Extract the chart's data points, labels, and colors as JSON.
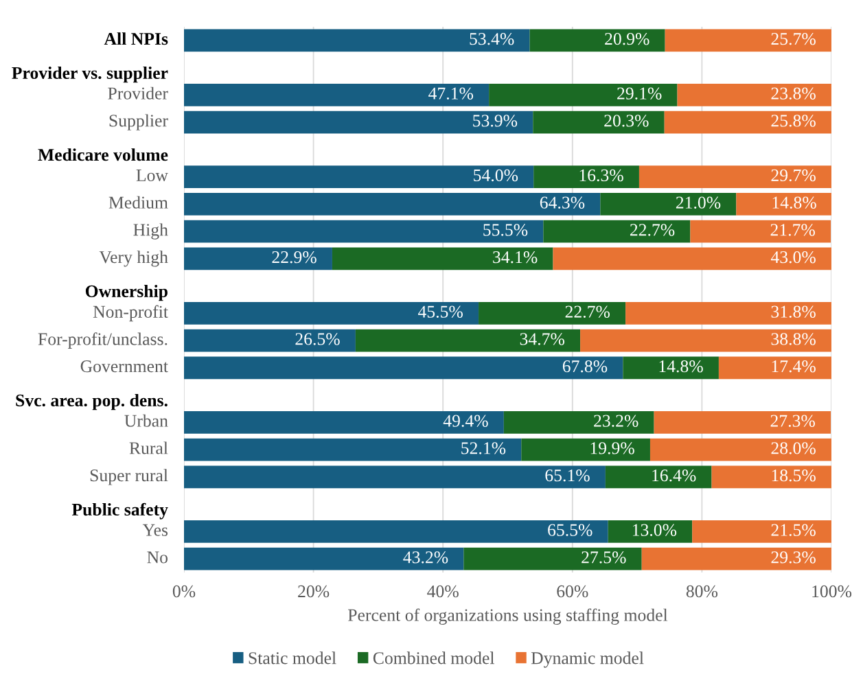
{
  "chart_data": {
    "type": "bar",
    "orientation": "horizontal",
    "stacked": true,
    "categories": [
      "All NPIs",
      "Provider vs. supplier",
      "Provider",
      "Supplier",
      "Medicare volume",
      "Low",
      "Medium",
      "High",
      "Very high",
      "Ownership",
      "Non-profit",
      "For-profit/unclass.",
      "Government",
      "Svc. area. pop. dens.",
      "Urban",
      "Rural",
      "Super rural",
      "Public safety",
      "Yes",
      "No"
    ],
    "series": [
      {
        "name": "Static model",
        "color": "#175e82",
        "values": [
          53.4,
          null,
          47.1,
          53.9,
          null,
          54.0,
          64.3,
          55.5,
          22.9,
          null,
          45.5,
          26.5,
          67.8,
          null,
          49.4,
          52.1,
          65.1,
          null,
          65.5,
          43.2
        ],
        "value_labels": [
          "53.4%",
          null,
          "47.1%",
          "53.9%",
          null,
          "54.0%",
          "64.3%",
          "55.5%",
          "22.9%",
          null,
          "45.5%",
          "26.5%",
          "67.8%",
          null,
          "49.4%",
          "52.1%",
          "65.1%",
          null,
          "65.5%",
          "43.2%"
        ]
      },
      {
        "name": "Combined model",
        "color": "#1b6a24",
        "values": [
          20.9,
          null,
          29.1,
          20.3,
          null,
          16.3,
          21.0,
          22.7,
          34.1,
          null,
          22.7,
          34.7,
          14.8,
          null,
          23.2,
          19.9,
          16.4,
          null,
          13.0,
          27.5
        ],
        "value_labels": [
          "20.9%",
          null,
          "29.1%",
          "20.3%",
          null,
          "16.3%",
          "21.0%",
          "22.7%",
          "34.1%",
          null,
          "22.7%",
          "34.7%",
          "14.8%",
          null,
          "23.2%",
          "19.9%",
          "16.4%",
          null,
          "13.0%",
          "27.5%"
        ]
      },
      {
        "name": "Dynamic model",
        "color": "#e87333",
        "values": [
          25.7,
          null,
          23.8,
          25.8,
          null,
          29.7,
          14.8,
          21.7,
          43.0,
          null,
          31.8,
          38.8,
          17.4,
          null,
          27.3,
          28.0,
          18.5,
          null,
          21.5,
          29.3
        ],
        "value_labels": [
          "25.7%",
          null,
          "23.8%",
          "25.8%",
          null,
          "29.7%",
          "14.8%",
          "21.7%",
          "43.0%",
          null,
          "31.8%",
          "38.8%",
          "17.4%",
          null,
          "27.3%",
          "28.0%",
          "18.5%",
          null,
          "21.5%",
          "29.3%"
        ]
      }
    ],
    "xlim": [
      0,
      100
    ],
    "xticks": [
      {
        "value": 0,
        "label": "0%"
      },
      {
        "value": 20,
        "label": "20%"
      },
      {
        "value": 40,
        "label": "40%"
      },
      {
        "value": 60,
        "label": "60%"
      },
      {
        "value": 80,
        "label": "80%"
      },
      {
        "value": 100,
        "label": "100%"
      }
    ],
    "xlabel": "Percent of organizations using staffing model",
    "grid": "x",
    "legend": "bottom"
  }
}
